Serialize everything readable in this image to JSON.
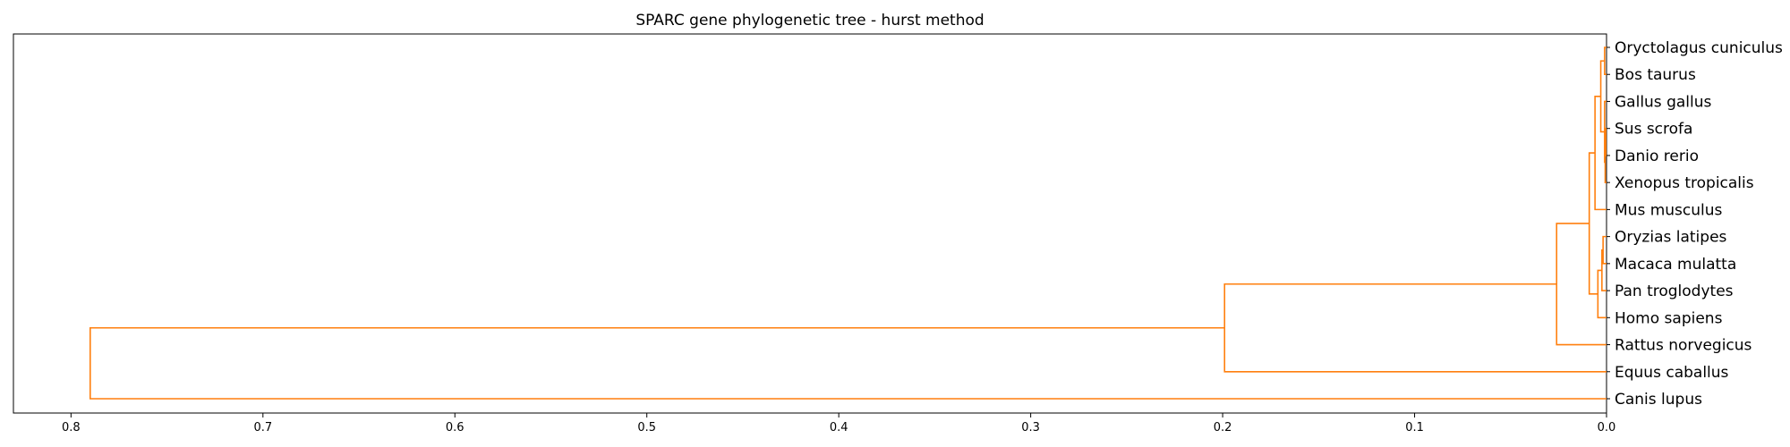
{
  "chart_data": {
    "type": "dendrogram",
    "title": "SPARC gene phylogenetic tree - hurst method",
    "xlabel": "",
    "ylabel": "",
    "orientation": "left",
    "xlim": [
      0.83,
      0.0
    ],
    "x_ticks": [
      "0.8",
      "0.7",
      "0.6",
      "0.5",
      "0.4",
      "0.3",
      "0.2",
      "0.1",
      "0.0"
    ],
    "x_tick_values": [
      0.8,
      0.7,
      0.6,
      0.5,
      0.4,
      0.3,
      0.2,
      0.1,
      0.0
    ],
    "grid": false,
    "link_color": "#ff7f0e",
    "leaves": [
      "Oryctolagus cuniculus",
      "Bos taurus",
      "Gallus gallus",
      "Sus scrofa",
      "Danio rerio",
      "Xenopus tropicalis",
      "Mus musculus",
      "Oryzias latipes",
      "Macaca mulatta",
      "Pan troglodytes",
      "Homo sapiens",
      "Rattus norvegicus",
      "Equus caballus",
      "Canis lupus"
    ],
    "merges": [
      {
        "children": [
          "L0",
          "L1"
        ],
        "height": 0.001
      },
      {
        "children": [
          "L3",
          "L4"
        ],
        "height": 0.0004
      },
      {
        "children": [
          "N1",
          "L5"
        ],
        "height": 0.0007
      },
      {
        "children": [
          "L2",
          "N2"
        ],
        "height": 0.001
      },
      {
        "children": [
          "N0",
          "N3"
        ],
        "height": 0.003
      },
      {
        "children": [
          "N4",
          "L6"
        ],
        "height": 0.006
      },
      {
        "children": [
          "L7",
          "L8"
        ],
        "height": 0.0018
      },
      {
        "children": [
          "N6",
          "L9"
        ],
        "height": 0.0024
      },
      {
        "children": [
          "N7",
          "L10"
        ],
        "height": 0.0045
      },
      {
        "children": [
          "N5",
          "N8"
        ],
        "height": 0.009
      },
      {
        "children": [
          "N9",
          "L11"
        ],
        "height": 0.026
      },
      {
        "children": [
          "N10",
          "L12"
        ],
        "height": 0.199
      },
      {
        "children": [
          "N11",
          "L13"
        ],
        "height": 0.79
      }
    ]
  }
}
